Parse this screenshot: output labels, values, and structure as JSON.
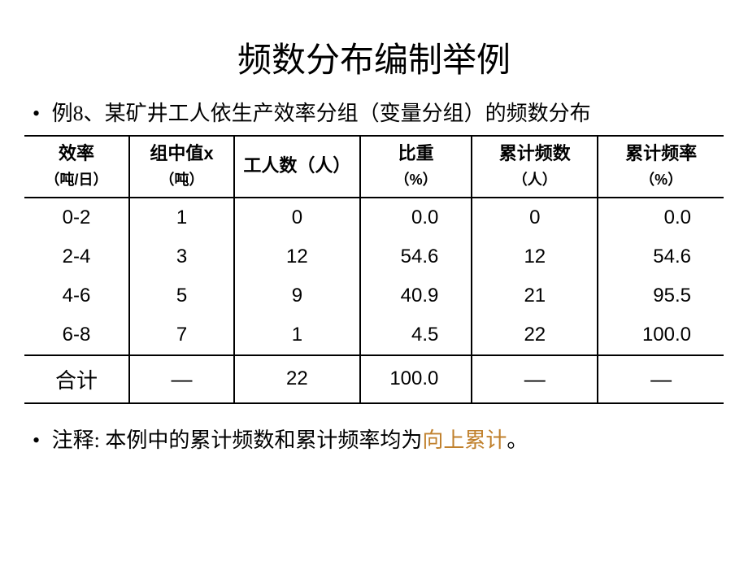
{
  "title": "频数分布编制举例",
  "intro_bullet": "•",
  "intro_text": "例8、某矿井工人依生产效率分组（变量分组）的频数分布",
  "table": {
    "headers": {
      "c1_l1": "效率",
      "c1_l2": "（吨/日）",
      "c2_l1": "组中值x",
      "c2_l2": "（吨）",
      "c3": "工人数（人）",
      "c4_l1": "比重",
      "c4_l2": "（%）",
      "c5_l1": "累计频数",
      "c5_l2": "（人）",
      "c6_l1": "累计频率",
      "c6_l2": "（%）"
    },
    "rows": [
      {
        "range": "0-2",
        "mid": "1",
        "count": "0",
        "pct": "0.0",
        "cumn": "0",
        "cump": "0.0"
      },
      {
        "range": "2-4",
        "mid": "3",
        "count": "12",
        "pct": "54.6",
        "cumn": "12",
        "cump": "54.6"
      },
      {
        "range": "4-6",
        "mid": "5",
        "count": "9",
        "pct": "40.9",
        "cumn": "21",
        "cump": "95.5"
      },
      {
        "range": "6-8",
        "mid": "7",
        "count": "1",
        "pct": "4.5",
        "cumn": "22",
        "cump": "100.0"
      }
    ],
    "total": {
      "label": "合计",
      "dash": "—",
      "count": "22",
      "pct": "100.0"
    }
  },
  "note_bullet": "•",
  "note_prefix": "注释:",
  "note_text1": "本例中的累计频数和累计频率均为",
  "note_accent": "向上累计",
  "note_text2": "。"
}
